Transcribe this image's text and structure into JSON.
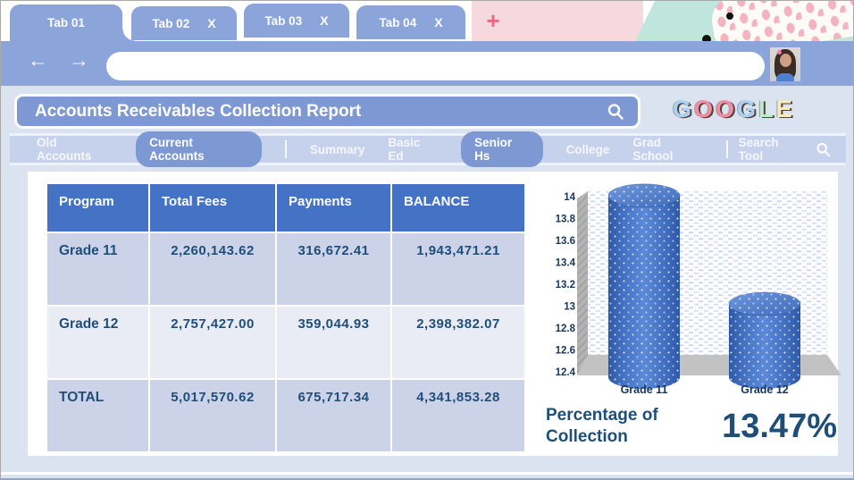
{
  "colors": {
    "frame-blue": "#8ba4da",
    "panel-blue": "#7e98d4",
    "nav-blue": "#c6d2ec",
    "bg-blue": "#dbe3f1",
    "header-blue": "#4472c4",
    "row-dark": "#ccd3e9",
    "row-light": "#e9ecf5",
    "text-navy": "#1f4e79",
    "pink-strip": "#f6d9de",
    "plus-pink": "#e96a84",
    "mint": "#bfe5dc",
    "dot-pink": "#f3b3c0",
    "cyl-blue": "#4472c4"
  },
  "browser": {
    "tabs": [
      {
        "label": "Tab 01",
        "active": true,
        "closable": false
      },
      {
        "label": "Tab 02",
        "active": false,
        "closable": true
      },
      {
        "label": "Tab 03",
        "active": false,
        "closable": true
      },
      {
        "label": "Tab 04",
        "active": false,
        "closable": true
      }
    ],
    "close_glyph": "X",
    "new_tab_glyph": "+",
    "back_glyph": "←",
    "forward_glyph": "→",
    "address_value": ""
  },
  "search_bar": {
    "title": "Accounts Receivables Collection Report"
  },
  "logo": {
    "word": "GOOGLE",
    "letters": [
      {
        "ch": "G",
        "color": "#a9d3f5"
      },
      {
        "ch": "O",
        "color": "#f28ca2"
      },
      {
        "ch": "O",
        "color": "#f28ca2"
      },
      {
        "ch": "G",
        "color": "#a9d3f5"
      },
      {
        "ch": "L",
        "color": "#bdeccd"
      },
      {
        "ch": "E",
        "color": "#f6ecc0"
      }
    ]
  },
  "nav": {
    "items": [
      {
        "label": "Old Accounts",
        "active": false
      },
      {
        "label": "Current Accounts",
        "active": true
      },
      {
        "label": "Summary",
        "active": false
      },
      {
        "label": "Basic Ed",
        "active": false
      },
      {
        "label": "Senior Hs",
        "active": true
      },
      {
        "label": "College",
        "active": false
      },
      {
        "label": "Grad School",
        "active": false
      }
    ],
    "search_tool": {
      "label": "Search Tool"
    }
  },
  "table": {
    "headers": [
      "Program",
      "Total Fees",
      "Payments",
      "BALANCE"
    ],
    "rows": [
      {
        "cells": [
          "Grade 11",
          "2,260,143.62",
          "316,672.41",
          "1,943,471.21"
        ]
      },
      {
        "cells": [
          "Grade 12",
          "2,757,427.00",
          "359,044.93",
          "2,398,382.07"
        ]
      },
      {
        "cells": [
          "TOTAL",
          "5,017,570.62",
          "675,717.34",
          "4,341,853.28"
        ]
      }
    ]
  },
  "chart_data": {
    "type": "bar",
    "subtype": "3d-cylinder",
    "categories": [
      "Grade 11",
      "Grade 12"
    ],
    "values": [
      14.01,
      13.02
    ],
    "title": "",
    "xlabel": "",
    "ylabel": "",
    "ylim": [
      12.4,
      14
    ],
    "ytick_step": 0.2,
    "yticks": [
      "14",
      "13.8",
      "13.6",
      "13.4",
      "13.2",
      "13",
      "12.8",
      "12.6",
      "12.4"
    ],
    "grid": false,
    "legend": "none",
    "bar_color": "#4472c4"
  },
  "summary": {
    "label_line1": "Percentage of",
    "label_line2": "Collection",
    "value": "13.47%"
  }
}
